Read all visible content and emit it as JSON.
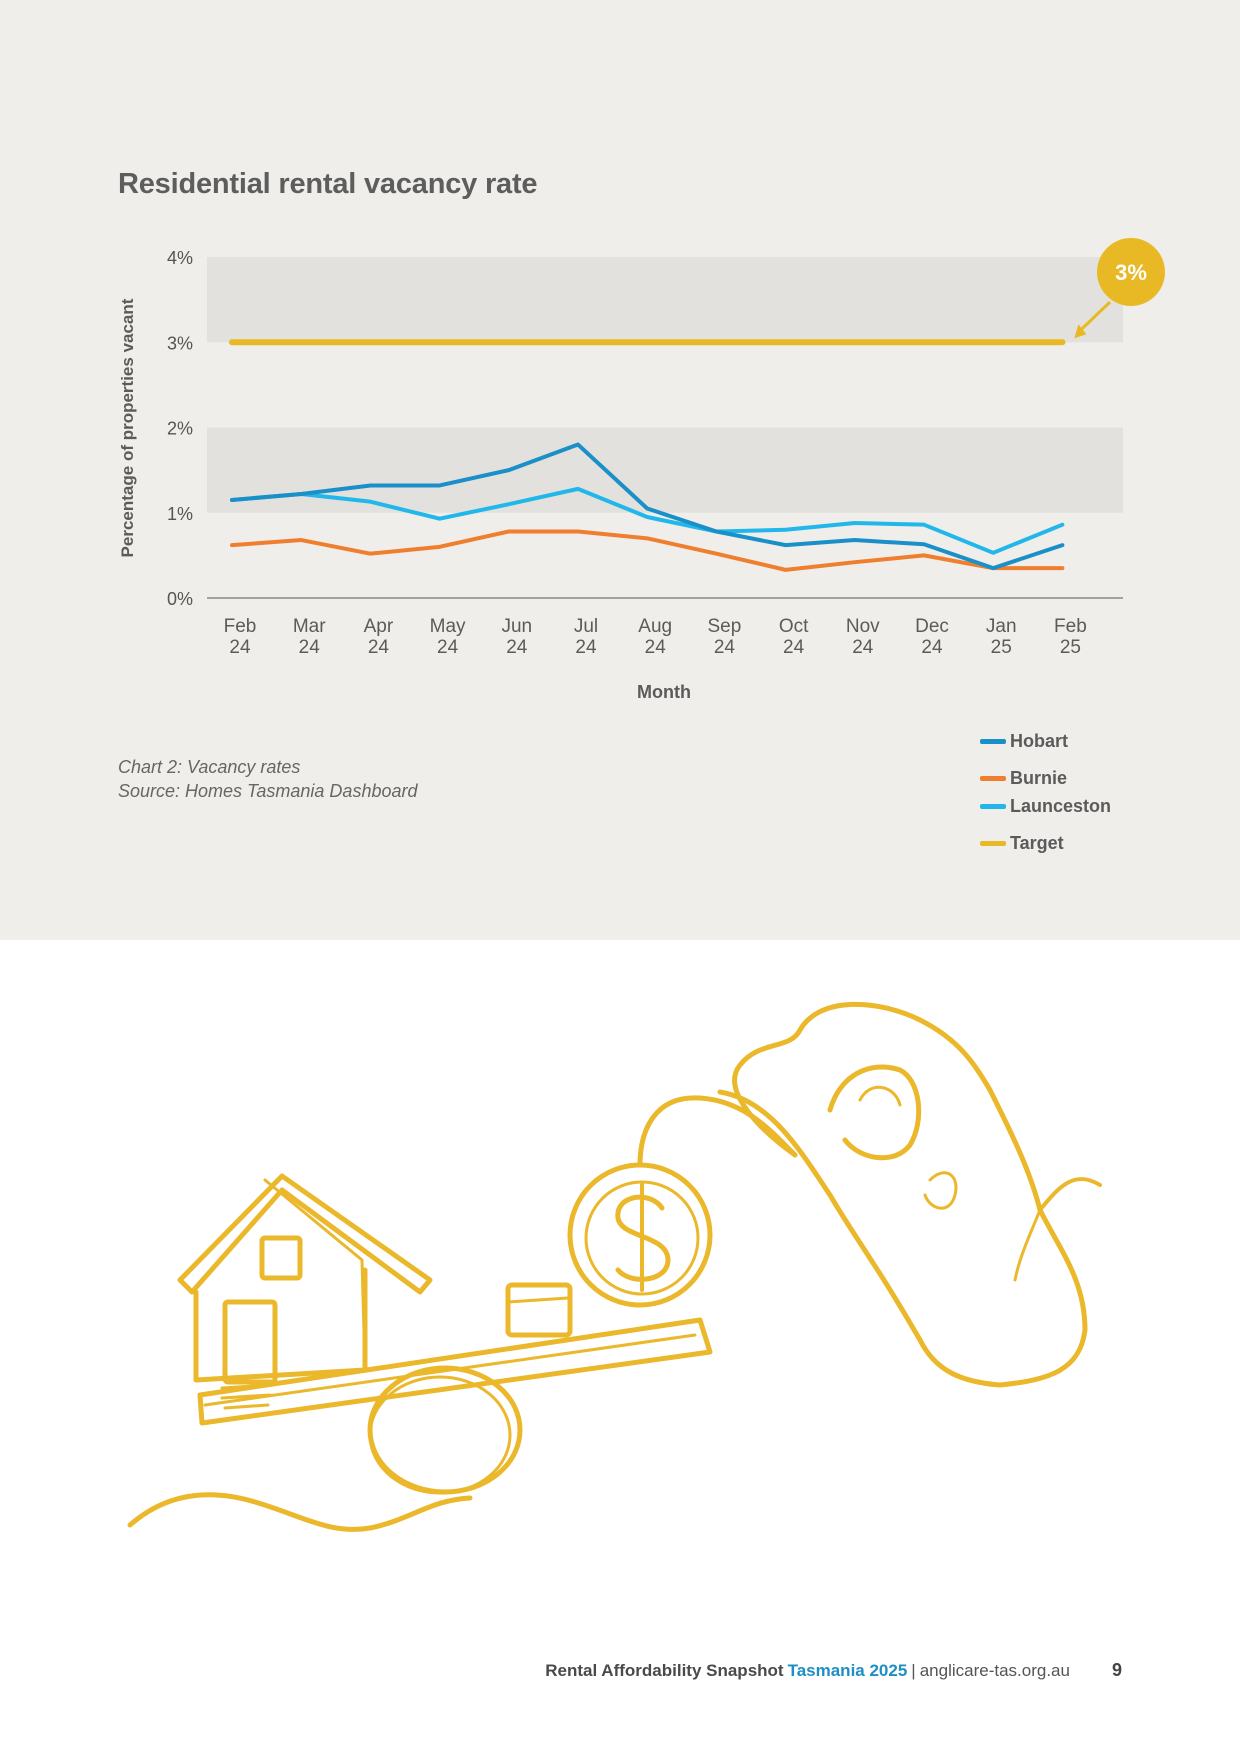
{
  "chart_data": {
    "type": "line",
    "title": "Residential rental vacancy rate",
    "xlabel": "Month",
    "ylabel": "Percentage of properties vacant",
    "categories": [
      [
        "Feb",
        "24"
      ],
      [
        "Mar",
        "24"
      ],
      [
        "Apr",
        "24"
      ],
      [
        "May",
        "24"
      ],
      [
        "Jun",
        "24"
      ],
      [
        "Jul",
        "24"
      ],
      [
        "Aug",
        "24"
      ],
      [
        "Sep",
        "24"
      ],
      [
        "Oct",
        "24"
      ],
      [
        "Nov",
        "24"
      ],
      [
        "Dec",
        "24"
      ],
      [
        "Jan",
        "25"
      ],
      [
        "Feb",
        "25"
      ]
    ],
    "ylim": [
      0,
      4
    ],
    "yticks": [
      "0%",
      "1%",
      "2%",
      "3%",
      "4%"
    ],
    "series": [
      {
        "name": "Hobart",
        "color": "#1a8fc8",
        "values": [
          1.15,
          1.22,
          1.32,
          1.32,
          1.5,
          1.8,
          1.05,
          0.78,
          0.62,
          0.68,
          0.63,
          0.35,
          0.62
        ]
      },
      {
        "name": "Burnie",
        "color": "#ef7f2e",
        "values": [
          0.62,
          0.68,
          0.52,
          0.6,
          0.78,
          0.78,
          0.7,
          0.52,
          0.33,
          0.42,
          0.5,
          0.35,
          0.35
        ]
      },
      {
        "name": "Launceston",
        "color": "#22b7ea",
        "values": [
          1.15,
          1.22,
          1.13,
          0.93,
          1.1,
          1.28,
          0.95,
          0.78,
          0.8,
          0.88,
          0.86,
          0.53,
          0.86
        ]
      },
      {
        "name": "Target",
        "color": "#e9b925",
        "values": [
          3,
          3,
          3,
          3,
          3,
          3,
          3,
          3,
          3,
          3,
          3,
          3,
          3
        ]
      }
    ],
    "bands": [
      [
        1,
        2
      ],
      [
        3,
        4
      ]
    ],
    "annotation": {
      "label": "3%",
      "value": 3
    },
    "legend_position": "bottom-right",
    "grid": false
  },
  "caption": {
    "line1": "Chart 2: Vacancy rates",
    "line2": "Source: Homes Tasmania Dashboard"
  },
  "footer": {
    "title": "Rental Affordability Snapshot",
    "accent": "Tasmania 2025",
    "separator": "|",
    "site": "anglicare-tas.org.au",
    "page": "9"
  },
  "colors": {
    "panel": "#efeeea",
    "band": "#e2e1dd",
    "illustration": "#eab82a"
  },
  "illustration": {
    "icon": "house-coin-scale-hand-illustration"
  }
}
